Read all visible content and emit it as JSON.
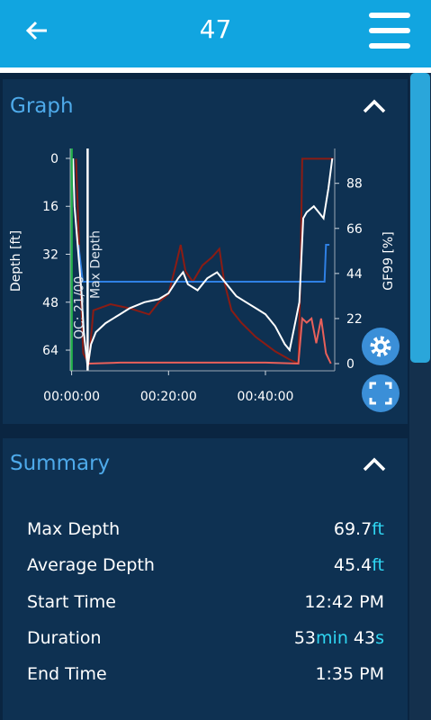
{
  "header": {
    "title": "47"
  },
  "graph": {
    "title": "Graph",
    "chart": {
      "type": "line",
      "y_label": "Depth [ft]",
      "y2_label": "GF99 [%]",
      "xlim": [
        -0.3,
        54.3
      ],
      "xticks": [
        {
          "value": 0,
          "label": "00:00:00"
        },
        {
          "value": 20,
          "label": "00:20:00"
        },
        {
          "value": 40,
          "label": "00:40:00"
        }
      ],
      "ylim": [
        -3.3,
        70.9
      ],
      "y_inverted": true,
      "yticks": [
        0,
        16,
        32,
        48,
        64
      ],
      "y2lim": [
        -3.5,
        105
      ],
      "y2ticks": [
        0,
        22,
        44,
        66,
        88
      ],
      "markers": [
        {
          "x": 0,
          "label": "OC: 21/00",
          "color": "#22b04a"
        },
        {
          "x": 3.3,
          "label": "Max Depth",
          "color": "#ffffff"
        }
      ],
      "series": [
        {
          "color": "#8b1c14",
          "axis": "y2",
          "x": [
            0.9,
            1.2,
            1.8,
            2.4,
            3.5,
            4.5,
            8,
            12,
            16,
            18,
            20,
            21.5,
            22.5,
            23.5,
            25,
            27,
            29,
            30.5,
            31.5,
            33,
            35,
            38,
            42,
            45,
            46.8,
            47.2,
            47.6,
            54
          ],
          "values": [
            100,
            80,
            40,
            5,
            0,
            26,
            29,
            27,
            24,
            30,
            34,
            48,
            58,
            45,
            40,
            48,
            52,
            56,
            40,
            26,
            20,
            13,
            6,
            2,
            0,
            40,
            100,
            100
          ]
        },
        {
          "color": "#e8605a",
          "axis": "y2",
          "x": [
            3.5,
            10,
            20,
            30,
            40,
            46.8,
            47.6,
            48.5,
            49.5,
            50.5,
            51.5,
            52.5,
            53.5
          ],
          "values": [
            0,
            0.5,
            0.5,
            0.5,
            0.5,
            0,
            22,
            20,
            22,
            10,
            22,
            5,
            0
          ]
        },
        {
          "color": "#2f80e4",
          "axis": "y2",
          "x": [
            1.4,
            1.8,
            2.3,
            10,
            20,
            30,
            40,
            52.2,
            52.5,
            53.2
          ],
          "values": [
            58,
            50,
            40,
            40,
            40,
            40,
            40,
            40,
            58,
            58
          ]
        },
        {
          "color": "#ffffff",
          "x": [
            0.3,
            0.6,
            1,
            1.5,
            2,
            2.5,
            3.3,
            4,
            5,
            7,
            10,
            12,
            15,
            18,
            20,
            22,
            23,
            24,
            26,
            28,
            30,
            32,
            34,
            36,
            38,
            40,
            42,
            44,
            45,
            46,
            47,
            47.8,
            48.5,
            50,
            51,
            52,
            53,
            53.8
          ],
          "values": [
            0,
            16,
            24,
            34,
            44,
            58,
            69.7,
            62,
            58,
            55,
            52,
            50,
            48,
            47,
            45,
            40,
            38,
            42,
            44,
            40,
            38,
            42,
            46,
            48,
            50,
            52,
            56,
            62,
            64,
            56,
            48,
            20,
            18,
            16,
            18,
            20,
            10,
            0
          ]
        }
      ]
    }
  },
  "summary": {
    "title": "Summary",
    "rows": [
      {
        "label": "Max Depth",
        "parts": [
          {
            "text": "69.7",
            "accent": false
          },
          {
            "text": "ft",
            "accent": true
          }
        ]
      },
      {
        "label": "Average Depth",
        "parts": [
          {
            "text": "45.4",
            "accent": false
          },
          {
            "text": "ft",
            "accent": true
          }
        ]
      },
      {
        "label": "Start Time",
        "parts": [
          {
            "text": "12:42 PM",
            "accent": false
          }
        ]
      },
      {
        "label": "Duration",
        "parts": [
          {
            "text": "53",
            "accent": false
          },
          {
            "text": "min",
            "accent": true
          },
          {
            "text": " 43",
            "accent": false
          },
          {
            "text": "s",
            "accent": true
          }
        ]
      },
      {
        "label": "End Time",
        "parts": [
          {
            "text": "1:35 PM",
            "accent": false
          }
        ]
      }
    ]
  }
}
